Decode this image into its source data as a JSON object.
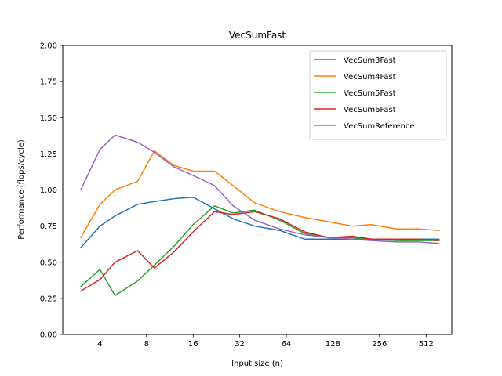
{
  "chart_data": {
    "type": "line",
    "title": "VecSumFast",
    "xlabel": "Input size (n)",
    "ylabel": "Performance (flops/cycle)",
    "x_scale": "log2",
    "xlim": [
      2.3,
      750
    ],
    "ylim": [
      0,
      2.0
    ],
    "grid": false,
    "legend_position": "top-right",
    "x_ticks": [
      {
        "value": 4,
        "label": "4"
      },
      {
        "value": 8,
        "label": "8"
      },
      {
        "value": 16,
        "label": "16"
      },
      {
        "value": 32,
        "label": "32"
      },
      {
        "value": 64,
        "label": "64"
      },
      {
        "value": 128,
        "label": "128"
      },
      {
        "value": 256,
        "label": "256"
      },
      {
        "value": 512,
        "label": "512"
      }
    ],
    "y_ticks": [
      {
        "value": 0.0,
        "label": "0.00"
      },
      {
        "value": 0.25,
        "label": "0.25"
      },
      {
        "value": 0.5,
        "label": "0.50"
      },
      {
        "value": 0.75,
        "label": "0.75"
      },
      {
        "value": 1.0,
        "label": "1.00"
      },
      {
        "value": 1.25,
        "label": "1.25"
      },
      {
        "value": 1.5,
        "label": "1.50"
      },
      {
        "value": 1.75,
        "label": "1.75"
      },
      {
        "value": 2.0,
        "label": "2.00"
      }
    ],
    "x": [
      3,
      4,
      5,
      7,
      9,
      12,
      16,
      22,
      29,
      40,
      58,
      84,
      120,
      170,
      226,
      330,
      460,
      620
    ],
    "series": [
      {
        "name": "VecSum3Fast",
        "color": "#1f77b4",
        "values": [
          0.6,
          0.75,
          0.82,
          0.9,
          0.92,
          0.94,
          0.95,
          0.87,
          0.8,
          0.75,
          0.72,
          0.66,
          0.66,
          0.66,
          0.66,
          0.66,
          0.66,
          0.66
        ]
      },
      {
        "name": "VecSum4Fast",
        "color": "#ff7f0e",
        "values": [
          0.67,
          0.9,
          1.0,
          1.06,
          1.27,
          1.17,
          1.13,
          1.13,
          1.03,
          0.91,
          0.85,
          0.81,
          0.78,
          0.75,
          0.76,
          0.73,
          0.73,
          0.72
        ]
      },
      {
        "name": "VecSum5Fast",
        "color": "#2ca02c",
        "values": [
          0.33,
          0.45,
          0.27,
          0.37,
          0.48,
          0.61,
          0.76,
          0.89,
          0.84,
          0.86,
          0.79,
          0.7,
          0.67,
          0.67,
          0.66,
          0.65,
          0.65,
          0.65
        ]
      },
      {
        "name": "VecSum6Fast",
        "color": "#d62728",
        "values": [
          0.3,
          0.38,
          0.5,
          0.58,
          0.46,
          0.57,
          0.71,
          0.85,
          0.83,
          0.85,
          0.8,
          0.71,
          0.67,
          0.68,
          0.66,
          0.66,
          0.66,
          0.65
        ]
      },
      {
        "name": "VecSumReference",
        "color": "#9467bd",
        "values": [
          1.0,
          1.28,
          1.38,
          1.33,
          1.26,
          1.16,
          1.1,
          1.03,
          0.89,
          0.79,
          0.73,
          0.69,
          0.67,
          0.66,
          0.65,
          0.64,
          0.64,
          0.63
        ]
      }
    ]
  }
}
